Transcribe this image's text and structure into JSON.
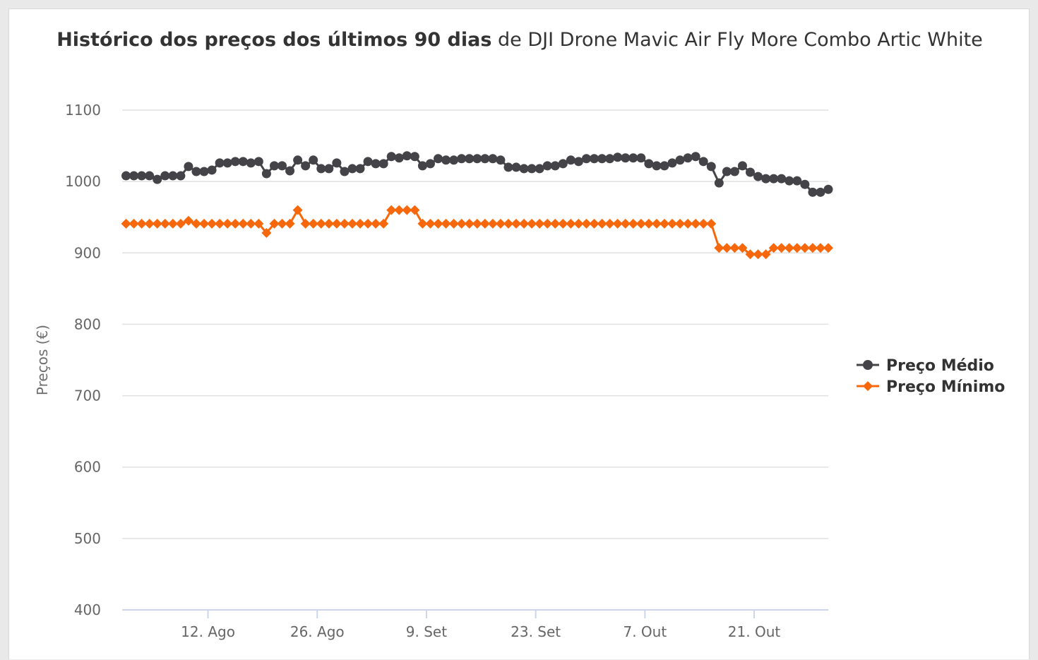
{
  "chart_data": {
    "type": "line",
    "title_bold": "Histórico dos preços dos últimos 90 dias",
    "title_rest": "de DJI Drone Mavic Air Fly More Combo Artic White",
    "xlabel": "",
    "ylabel": "Preços (€)",
    "ylim": [
      400,
      1100
    ],
    "y_ticks": [
      "400",
      "500",
      "600",
      "700",
      "800",
      "900",
      "1000",
      "1100"
    ],
    "x_ticks": [
      {
        "label": "12. Ago",
        "day": 10.5
      },
      {
        "label": "26. Ago",
        "day": 24.5
      },
      {
        "label": "9. Set",
        "day": 38.5
      },
      {
        "label": "23. Set",
        "day": 52.5
      },
      {
        "label": "7. Out",
        "day": 66.5
      },
      {
        "label": "21. Out",
        "day": 80.5
      }
    ],
    "x_range": [
      -0.5,
      90
    ],
    "legend_position": "right",
    "series": [
      {
        "name": "Preço Médio",
        "color": "#434348",
        "marker": "circle",
        "values": [
          1008,
          1008,
          1008,
          1008,
          1003,
          1008,
          1008,
          1008,
          1021,
          1014,
          1014,
          1016,
          1026,
          1026,
          1028,
          1028,
          1026,
          1028,
          1011,
          1022,
          1022,
          1015,
          1030,
          1022,
          1030,
          1018,
          1018,
          1026,
          1014,
          1018,
          1018,
          1028,
          1025,
          1025,
          1035,
          1033,
          1036,
          1035,
          1022,
          1025,
          1032,
          1030,
          1030,
          1032,
          1032,
          1032,
          1032,
          1032,
          1030,
          1020,
          1020,
          1018,
          1018,
          1018,
          1022,
          1022,
          1025,
          1030,
          1028,
          1032,
          1032,
          1032,
          1032,
          1034,
          1033,
          1033,
          1033,
          1025,
          1022,
          1022,
          1026,
          1030,
          1033,
          1035,
          1028,
          1021,
          998,
          1014,
          1014,
          1022,
          1013,
          1007,
          1004,
          1004,
          1004,
          1001,
          1001,
          996,
          985,
          985,
          989
        ]
      },
      {
        "name": "Preço Mínimo",
        "color": "#f7680d",
        "marker": "diamond",
        "values": [
          941,
          941,
          941,
          941,
          941,
          941,
          941,
          941,
          945,
          941,
          941,
          941,
          941,
          941,
          941,
          941,
          941,
          941,
          928,
          941,
          941,
          941,
          960,
          941,
          941,
          941,
          941,
          941,
          941,
          941,
          941,
          941,
          941,
          941,
          960,
          960,
          960,
          960,
          941,
          941,
          941,
          941,
          941,
          941,
          941,
          941,
          941,
          941,
          941,
          941,
          941,
          941,
          941,
          941,
          941,
          941,
          941,
          941,
          941,
          941,
          941,
          941,
          941,
          941,
          941,
          941,
          941,
          941,
          941,
          941,
          941,
          941,
          941,
          941,
          941,
          941,
          907,
          907,
          907,
          907,
          898,
          898,
          898,
          907,
          907,
          907,
          907,
          907,
          907,
          907,
          907
        ]
      }
    ]
  }
}
